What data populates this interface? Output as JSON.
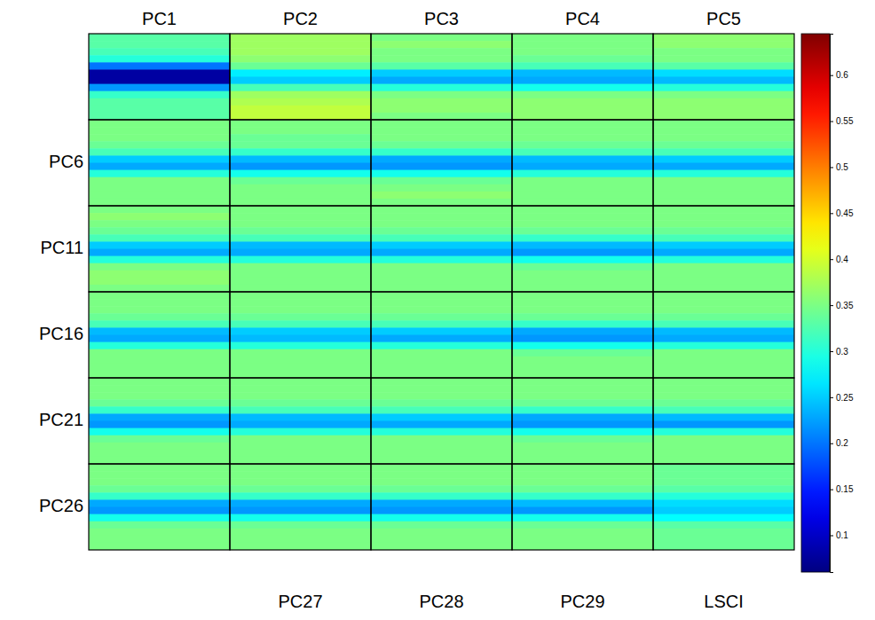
{
  "chart_data": {
    "type": "heatmap",
    "column_labels": [
      "PC1",
      "PC2",
      "PC3",
      "PC4",
      "PC5"
    ],
    "row_labels": [
      null,
      "PC6",
      "PC11",
      "PC16",
      "PC21",
      "PC26"
    ],
    "bottom_labels": [
      null,
      "PC27",
      "PC28",
      "PC29",
      "LSCI"
    ],
    "cells": [
      [
        [
          0.33,
          0.33,
          0.32,
          0.3,
          0.2,
          0.08,
          0.08,
          0.22,
          0.31,
          0.33,
          0.33,
          0.33
        ],
        [
          0.37,
          0.37,
          0.37,
          0.36,
          0.34,
          0.27,
          0.25,
          0.32,
          0.37,
          0.38,
          0.39,
          0.39
        ],
        [
          0.35,
          0.36,
          0.35,
          0.35,
          0.33,
          0.25,
          0.23,
          0.3,
          0.35,
          0.36,
          0.36,
          0.35
        ],
        [
          0.35,
          0.35,
          0.35,
          0.34,
          0.32,
          0.24,
          0.23,
          0.29,
          0.35,
          0.36,
          0.36,
          0.36
        ],
        [
          0.36,
          0.36,
          0.35,
          0.35,
          0.33,
          0.26,
          0.24,
          0.3,
          0.35,
          0.36,
          0.36,
          0.36
        ]
      ],
      [
        [
          0.35,
          0.35,
          0.35,
          0.34,
          0.32,
          0.25,
          0.23,
          0.3,
          0.35,
          0.35,
          0.35,
          0.35
        ],
        [
          0.35,
          0.35,
          0.34,
          0.34,
          0.31,
          0.24,
          0.22,
          0.29,
          0.34,
          0.35,
          0.35,
          0.35
        ],
        [
          0.35,
          0.35,
          0.35,
          0.34,
          0.31,
          0.23,
          0.22,
          0.29,
          0.34,
          0.35,
          0.36,
          0.35
        ],
        [
          0.35,
          0.35,
          0.35,
          0.34,
          0.32,
          0.24,
          0.23,
          0.3,
          0.35,
          0.35,
          0.35,
          0.35
        ],
        [
          0.35,
          0.35,
          0.35,
          0.34,
          0.32,
          0.25,
          0.23,
          0.3,
          0.35,
          0.35,
          0.35,
          0.35
        ]
      ],
      [
        [
          0.35,
          0.36,
          0.35,
          0.34,
          0.32,
          0.25,
          0.23,
          0.3,
          0.35,
          0.36,
          0.36,
          0.35
        ],
        [
          0.35,
          0.35,
          0.35,
          0.34,
          0.32,
          0.24,
          0.23,
          0.3,
          0.35,
          0.35,
          0.35,
          0.35
        ],
        [
          0.35,
          0.35,
          0.35,
          0.34,
          0.32,
          0.25,
          0.23,
          0.3,
          0.35,
          0.35,
          0.35,
          0.35
        ],
        [
          0.35,
          0.35,
          0.35,
          0.34,
          0.31,
          0.24,
          0.22,
          0.29,
          0.34,
          0.35,
          0.35,
          0.35
        ],
        [
          0.35,
          0.35,
          0.35,
          0.34,
          0.32,
          0.25,
          0.23,
          0.3,
          0.35,
          0.35,
          0.35,
          0.35
        ]
      ],
      [
        [
          0.35,
          0.35,
          0.35,
          0.34,
          0.32,
          0.24,
          0.23,
          0.3,
          0.35,
          0.35,
          0.35,
          0.35
        ],
        [
          0.35,
          0.35,
          0.35,
          0.34,
          0.32,
          0.25,
          0.24,
          0.3,
          0.35,
          0.35,
          0.35,
          0.35
        ],
        [
          0.35,
          0.35,
          0.35,
          0.34,
          0.32,
          0.25,
          0.23,
          0.3,
          0.35,
          0.35,
          0.35,
          0.35
        ],
        [
          0.35,
          0.35,
          0.35,
          0.34,
          0.31,
          0.23,
          0.22,
          0.29,
          0.34,
          0.35,
          0.35,
          0.35
        ],
        [
          0.35,
          0.35,
          0.35,
          0.34,
          0.32,
          0.24,
          0.23,
          0.3,
          0.35,
          0.35,
          0.35,
          0.35
        ]
      ],
      [
        [
          0.35,
          0.35,
          0.35,
          0.34,
          0.31,
          0.23,
          0.22,
          0.29,
          0.34,
          0.35,
          0.35,
          0.35
        ],
        [
          0.35,
          0.35,
          0.35,
          0.34,
          0.32,
          0.24,
          0.23,
          0.3,
          0.35,
          0.35,
          0.35,
          0.35
        ],
        [
          0.35,
          0.35,
          0.35,
          0.34,
          0.32,
          0.25,
          0.23,
          0.3,
          0.35,
          0.35,
          0.35,
          0.35
        ],
        [
          0.35,
          0.35,
          0.35,
          0.34,
          0.31,
          0.23,
          0.22,
          0.29,
          0.34,
          0.35,
          0.35,
          0.35
        ],
        [
          0.35,
          0.35,
          0.35,
          0.34,
          0.32,
          0.24,
          0.22,
          0.3,
          0.35,
          0.35,
          0.35,
          0.35
        ]
      ],
      [
        [
          0.35,
          0.35,
          0.35,
          0.34,
          0.31,
          0.23,
          0.22,
          0.29,
          0.34,
          0.35,
          0.35,
          0.35
        ],
        [
          0.35,
          0.35,
          0.35,
          0.34,
          0.31,
          0.23,
          0.22,
          0.29,
          0.34,
          0.35,
          0.35,
          0.35
        ],
        [
          0.35,
          0.35,
          0.35,
          0.34,
          0.31,
          0.23,
          0.22,
          0.29,
          0.34,
          0.35,
          0.35,
          0.35
        ],
        [
          0.35,
          0.35,
          0.35,
          0.34,
          0.31,
          0.24,
          0.22,
          0.29,
          0.34,
          0.35,
          0.35,
          0.35
        ],
        [
          0.34,
          0.34,
          0.34,
          0.33,
          0.3,
          0.26,
          0.25,
          0.28,
          0.33,
          0.34,
          0.34,
          0.34
        ]
      ]
    ],
    "colorbar_range": [
      0.06,
      0.645
    ],
    "colorbar_ticks": [
      0.1,
      0.15,
      0.2,
      0.25,
      0.3,
      0.35,
      0.4,
      0.45,
      0.5,
      0.55,
      0.6
    ]
  }
}
